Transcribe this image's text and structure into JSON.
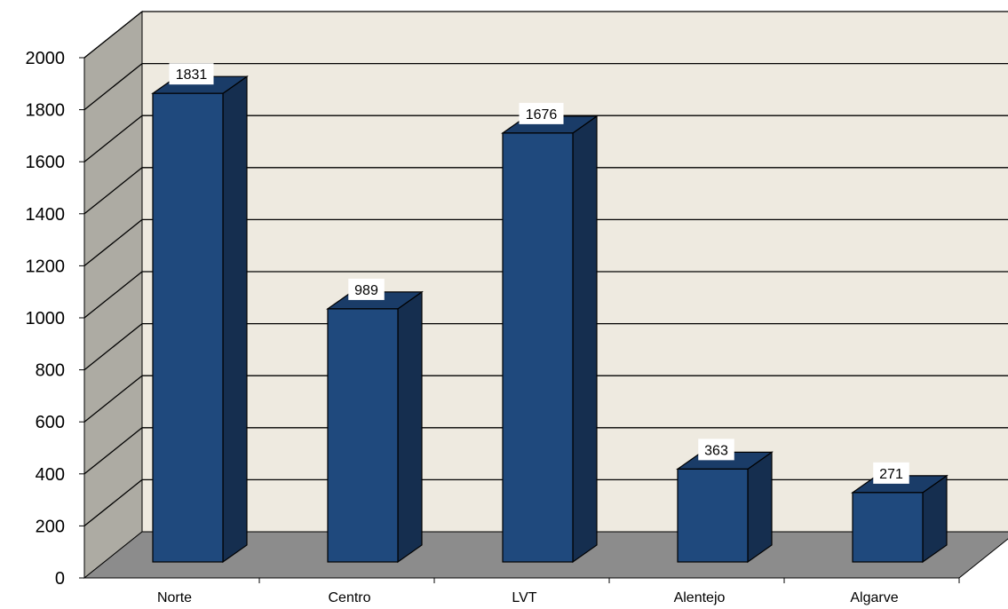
{
  "chart_data": {
    "type": "bar",
    "title": "",
    "xlabel": "",
    "ylabel": "",
    "categories": [
      "Norte",
      "Centro",
      "LVT",
      "Alentejo",
      "Algarve"
    ],
    "values": [
      1831,
      989,
      1676,
      363,
      271
    ],
    "ylim": [
      0,
      2000
    ],
    "yticks": [
      "0",
      "200",
      "400",
      "600",
      "800",
      "1000",
      "1200",
      "1400",
      "1600",
      "1800",
      "2000"
    ],
    "grid": true,
    "legend": "none",
    "style": "3d",
    "colors": {
      "bar_front": "#1F497D",
      "bar_top": "#1A3C68",
      "bar_side": "#152E4F",
      "back_wall": "#EEEAE0",
      "side_wall": "#ADABA3",
      "floor": "#8C8C8C"
    }
  }
}
